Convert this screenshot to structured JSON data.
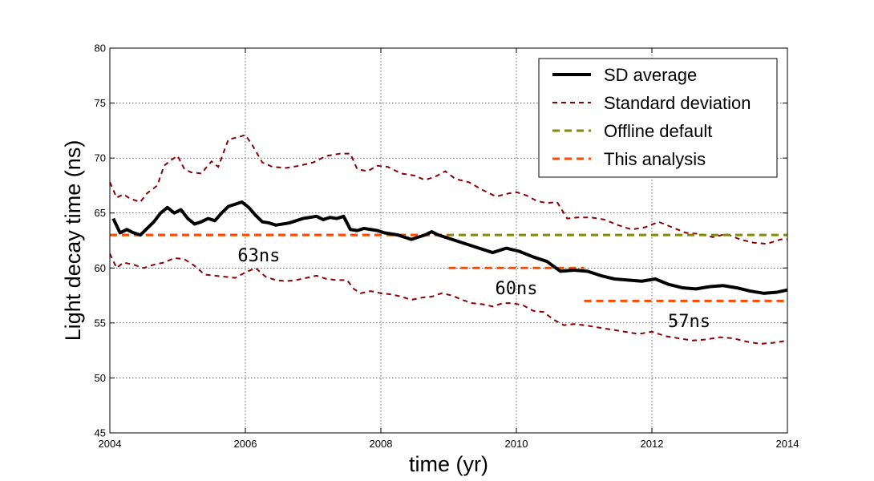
{
  "chart_data": {
    "type": "line",
    "xlabel": "time (yr)",
    "ylabel": "Light decay time (ns)",
    "xlim": [
      2004,
      2014
    ],
    "ylim": [
      45,
      80
    ],
    "xticks": [
      2004,
      2006,
      2008,
      2010,
      2012,
      2014
    ],
    "yticks": [
      45,
      50,
      55,
      60,
      65,
      70,
      75,
      80
    ],
    "grid": true,
    "legend_position": "top-right",
    "series": [
      {
        "name": "SD average",
        "color": "#000000",
        "style": "solid",
        "x": [
          2004.05,
          2004.15,
          2004.25,
          2004.35,
          2004.45,
          2004.55,
          2004.65,
          2004.75,
          2004.85,
          2004.95,
          2005.05,
          2005.15,
          2005.25,
          2005.35,
          2005.45,
          2005.55,
          2005.65,
          2005.75,
          2005.85,
          2005.95,
          2006.05,
          2006.15,
          2006.25,
          2006.35,
          2006.45,
          2006.55,
          2006.65,
          2006.75,
          2006.85,
          2006.95,
          2007.05,
          2007.15,
          2007.25,
          2007.35,
          2007.45,
          2007.55,
          2007.65,
          2007.75,
          2007.85,
          2007.95,
          2008.05,
          2008.15,
          2008.25,
          2008.35,
          2008.45,
          2008.55,
          2008.65,
          2008.75,
          2008.85,
          2008.95,
          2009.05,
          2009.25,
          2009.45,
          2009.65,
          2009.85,
          2010.05,
          2010.25,
          2010.45,
          2010.65,
          2010.85,
          2011.05,
          2011.25,
          2011.45,
          2011.65,
          2011.85,
          2012.05,
          2012.25,
          2012.45,
          2012.65,
          2012.85,
          2013.05,
          2013.25,
          2013.45,
          2013.65,
          2013.85,
          2014.0
        ],
        "y": [
          64.5,
          63.2,
          63.5,
          63.2,
          63.0,
          63.6,
          64.2,
          65.0,
          65.5,
          65.0,
          65.3,
          64.5,
          64.0,
          64.2,
          64.5,
          64.3,
          65.0,
          65.6,
          65.8,
          66.0,
          65.5,
          64.8,
          64.2,
          64.1,
          63.9,
          64.0,
          64.1,
          64.3,
          64.5,
          64.6,
          64.7,
          64.4,
          64.6,
          64.5,
          64.7,
          63.5,
          63.4,
          63.6,
          63.5,
          63.4,
          63.2,
          63.1,
          63.0,
          62.8,
          62.6,
          62.8,
          63.0,
          63.3,
          63.0,
          62.8,
          62.6,
          62.2,
          61.8,
          61.4,
          61.8,
          61.5,
          61.0,
          60.6,
          59.7,
          59.8,
          59.7,
          59.3,
          59.0,
          58.9,
          58.8,
          59.0,
          58.5,
          58.2,
          58.1,
          58.3,
          58.4,
          58.2,
          57.9,
          57.7,
          57.8,
          58.0
        ]
      },
      {
        "name": "Standard deviation",
        "color": "#8b0000",
        "style": "dashed",
        "x": [
          2004.0,
          2004.1,
          2004.2,
          2004.3,
          2004.45,
          2004.55,
          2004.7,
          2004.8,
          2004.9,
          2005.0,
          2005.1,
          2005.2,
          2005.35,
          2005.5,
          2005.6,
          2005.75,
          2005.9,
          2006.0,
          2006.1,
          2006.25,
          2006.4,
          2006.6,
          2006.8,
          2007.0,
          2007.2,
          2007.4,
          2007.55,
          2007.65,
          2007.8,
          2007.95,
          2008.1,
          2008.3,
          2008.5,
          2008.65,
          2008.8,
          2008.95,
          2009.1,
          2009.3,
          2009.5,
          2009.7,
          2009.9,
          2010.0,
          2010.15,
          2010.3,
          2010.45,
          2010.6,
          2010.75,
          2010.9,
          2011.1,
          2011.3,
          2011.5,
          2011.7,
          2011.9,
          2012.1,
          2012.3,
          2012.5,
          2012.7,
          2012.9,
          2013.1,
          2013.3,
          2013.5,
          2013.7,
          2013.9,
          2014.0
        ],
        "y": [
          67.8,
          66.4,
          66.7,
          66.3,
          66.0,
          66.8,
          67.5,
          69.3,
          69.8,
          70.2,
          69.0,
          68.7,
          68.6,
          69.7,
          69.2,
          71.7,
          71.9,
          72.1,
          71.2,
          69.6,
          69.2,
          69.1,
          69.3,
          69.6,
          70.2,
          70.4,
          70.4,
          69.0,
          68.8,
          69.3,
          69.2,
          68.6,
          68.4,
          68.0,
          68.3,
          68.8,
          68.1,
          67.8,
          67.1,
          66.5,
          66.8,
          66.9,
          66.6,
          66.1,
          65.9,
          66.0,
          64.5,
          64.6,
          64.6,
          64.4,
          63.9,
          63.5,
          63.7,
          64.2,
          63.7,
          63.2,
          63.1,
          62.8,
          63.1,
          62.6,
          62.3,
          62.2,
          62.6,
          62.6
        ]
      },
      {
        "name": "",
        "color": "#8b0000",
        "style": "dashed",
        "x": [
          2004.0,
          2004.1,
          2004.2,
          2004.35,
          2004.5,
          2004.65,
          2004.8,
          2004.95,
          2005.1,
          2005.25,
          2005.4,
          2005.55,
          2005.7,
          2005.85,
          2006.0,
          2006.15,
          2006.3,
          2006.45,
          2006.6,
          2006.75,
          2006.9,
          2007.05,
          2007.2,
          2007.35,
          2007.5,
          2007.6,
          2007.7,
          2007.85,
          2008.0,
          2008.15,
          2008.3,
          2008.45,
          2008.6,
          2008.75,
          2008.9,
          2009.05,
          2009.2,
          2009.35,
          2009.5,
          2009.65,
          2009.8,
          2009.95,
          2010.1,
          2010.25,
          2010.4,
          2010.55,
          2010.7,
          2010.85,
          2011.0,
          2011.2,
          2011.4,
          2011.6,
          2011.8,
          2012.0,
          2012.2,
          2012.4,
          2012.6,
          2012.8,
          2013.0,
          2013.2,
          2013.4,
          2013.6,
          2013.8,
          2014.0
        ],
        "y": [
          61.3,
          60.0,
          60.5,
          60.3,
          60.0,
          60.3,
          60.5,
          60.9,
          60.8,
          60.2,
          59.4,
          59.3,
          59.2,
          59.1,
          59.6,
          60.0,
          59.2,
          58.9,
          58.8,
          58.9,
          59.1,
          59.3,
          59.0,
          58.9,
          58.9,
          58.1,
          57.7,
          57.9,
          57.7,
          57.6,
          57.4,
          57.1,
          57.3,
          57.4,
          57.7,
          57.5,
          57.1,
          56.8,
          56.7,
          56.5,
          56.8,
          56.8,
          56.6,
          56.1,
          56.0,
          55.3,
          54.8,
          54.9,
          54.8,
          54.6,
          54.4,
          54.2,
          54.0,
          54.2,
          53.8,
          53.6,
          53.4,
          53.5,
          53.7,
          53.6,
          53.3,
          53.1,
          53.2,
          53.4
        ]
      },
      {
        "name": "Offline default",
        "color": "#7f8c0a",
        "style": "dashed",
        "x": [
          2004,
          2014
        ],
        "y": [
          63,
          63
        ]
      },
      {
        "name": "This analysis",
        "color": "#ff4a00",
        "style": "dashed",
        "segments": [
          {
            "x": [
              2004,
              2009
            ],
            "y": [
              63,
              63
            ]
          },
          {
            "x": [
              2009,
              2011
            ],
            "y": [
              60,
              60
            ]
          },
          {
            "x": [
              2011,
              2014
            ],
            "y": [
              57,
              57
            ]
          }
        ]
      }
    ],
    "annotations": [
      {
        "text": "63ns",
        "x": 2006.2,
        "y": 61.2
      },
      {
        "text": "60ns",
        "x": 2010.0,
        "y": 58.2
      },
      {
        "text": "57ns",
        "x": 2012.55,
        "y": 55.2
      }
    ]
  }
}
